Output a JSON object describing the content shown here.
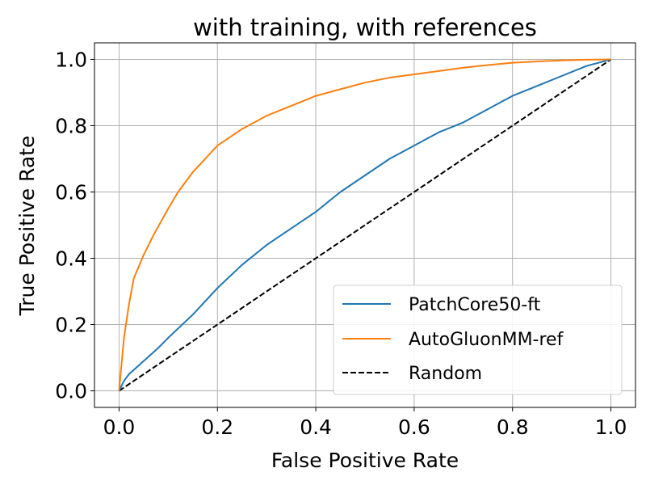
{
  "chart_data": {
    "type": "line",
    "title": "with training, with references",
    "xlabel": "False Positive Rate",
    "ylabel": "True Positive Rate",
    "xlim": [
      -0.05,
      1.05
    ],
    "ylim": [
      -0.05,
      1.05
    ],
    "grid": true,
    "legend_position": "lower-right",
    "xticks": [
      0.0,
      0.2,
      0.4,
      0.6,
      0.8,
      1.0
    ],
    "xtick_labels": [
      "0.0",
      "0.2",
      "0.4",
      "0.6",
      "0.8",
      "1.0"
    ],
    "yticks": [
      0.0,
      0.2,
      0.4,
      0.6,
      0.8,
      1.0
    ],
    "ytick_labels": [
      "0.0",
      "0.2",
      "0.4",
      "0.6",
      "0.8",
      "1.0"
    ],
    "series": [
      {
        "name": "PatchCore50-ft",
        "color": "#1f77b4",
        "dash": "solid",
        "x": [
          0.0,
          0.01,
          0.02,
          0.05,
          0.08,
          0.1,
          0.15,
          0.2,
          0.25,
          0.3,
          0.35,
          0.4,
          0.45,
          0.5,
          0.55,
          0.6,
          0.65,
          0.7,
          0.75,
          0.8,
          0.85,
          0.9,
          0.95,
          1.0
        ],
        "y": [
          0.0,
          0.03,
          0.05,
          0.09,
          0.13,
          0.16,
          0.23,
          0.31,
          0.38,
          0.44,
          0.49,
          0.54,
          0.6,
          0.65,
          0.7,
          0.74,
          0.78,
          0.81,
          0.85,
          0.89,
          0.92,
          0.95,
          0.98,
          1.0
        ]
      },
      {
        "name": "AutoGluonMM-ref",
        "color": "#ff7f0e",
        "dash": "solid",
        "x": [
          0.0,
          0.005,
          0.01,
          0.02,
          0.03,
          0.05,
          0.07,
          0.1,
          0.12,
          0.15,
          0.2,
          0.25,
          0.3,
          0.35,
          0.4,
          0.45,
          0.5,
          0.55,
          0.6,
          0.65,
          0.7,
          0.75,
          0.8,
          0.85,
          0.9,
          0.95,
          1.0
        ],
        "y": [
          0.0,
          0.08,
          0.16,
          0.26,
          0.34,
          0.41,
          0.47,
          0.55,
          0.6,
          0.66,
          0.74,
          0.79,
          0.83,
          0.86,
          0.89,
          0.91,
          0.93,
          0.945,
          0.955,
          0.965,
          0.975,
          0.983,
          0.99,
          0.994,
          0.997,
          0.999,
          1.0
        ]
      },
      {
        "name": "Random",
        "color": "#000000",
        "dash": "dashed",
        "x": [
          0.0,
          1.0
        ],
        "y": [
          0.0,
          1.0
        ]
      }
    ]
  }
}
